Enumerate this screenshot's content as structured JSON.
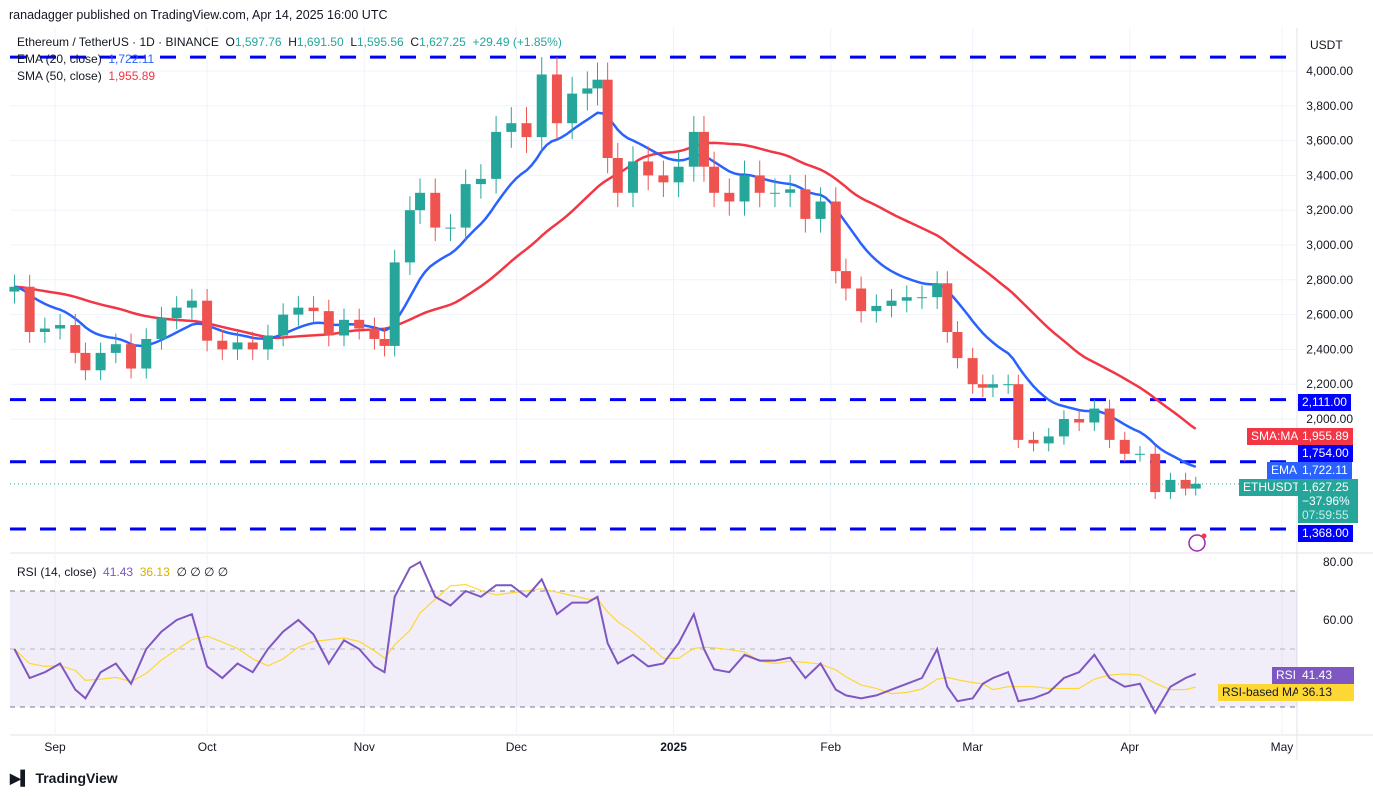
{
  "header": {
    "published": "ranadagger published on TradingView.com, Apr 14, 2025 16:00 UTC"
  },
  "legend": {
    "symbol": "Ethereum / TetherUS · 1D · BINANCE",
    "o_label": "O",
    "o": "1,597.76",
    "h_label": "H",
    "h": "1,691.50",
    "l_label": "L",
    "l": "1,595.56",
    "c_label": "C",
    "c": "1,627.25",
    "change": "+29.49 (+1.85%)",
    "ema_label": "EMA (20, close)",
    "ema": "1,722.11",
    "sma_label": "SMA (50, close)",
    "sma": "1,955.89"
  },
  "rsi_legend": {
    "label": "RSI (14, close)",
    "rsi": "41.43",
    "ma": "36.13",
    "rest": "∅ ∅ ∅ ∅"
  },
  "axis": {
    "currency": "USDT",
    "price_ticks": [
      "4,000.00",
      "3,800.00",
      "3,600.00",
      "3,400.00",
      "3,200.00",
      "3,000.00",
      "2,800.00",
      "2,600.00",
      "2,400.00",
      "2,200.00",
      "2,000.00"
    ],
    "rsi_ticks": [
      "80.00",
      "60.00"
    ],
    "time_ticks": [
      {
        "label": "Sep",
        "date": "2024-09-01"
      },
      {
        "label": "Oct",
        "date": "2024-10-01"
      },
      {
        "label": "Nov",
        "date": "2024-11-01"
      },
      {
        "label": "Dec",
        "date": "2024-12-01"
      },
      {
        "label": "2025",
        "date": "2025-01-01"
      },
      {
        "label": "Feb",
        "date": "2025-02-01"
      },
      {
        "label": "Mar",
        "date": "2025-03-01"
      },
      {
        "label": "Apr",
        "date": "2025-04-01"
      },
      {
        "label": "May",
        "date": "2025-05-01"
      }
    ]
  },
  "tags": {
    "l2111": "2,111.00",
    "sma_name": "SMA:MA",
    "sma": "1,955.89",
    "l1754": "1,754.00",
    "ema_name": "EMA",
    "ema": "1,722.11",
    "sym": "ETHUSDT",
    "price": "1,627.25",
    "pct": "−37.96%",
    "countdown": "07:59:55",
    "l1368": "1,368.00",
    "rsi_name": "RSI",
    "rsi": "41.43",
    "rsima_name": "RSI-based MA",
    "rsima": "36.13"
  },
  "footer": {
    "brand": "TradingView"
  },
  "colors": {
    "up": "#26a69a",
    "down": "#ef5350",
    "ema": "#2962ff",
    "sma": "#f23645",
    "level": "#0000ff",
    "rsi": "#7e57c2",
    "rsi_ma": "#fdd835"
  },
  "chart_data": {
    "type": "candlestick",
    "price_range": [
      1300,
      4150
    ],
    "levels": [
      4080,
      2111,
      1754,
      1368
    ],
    "indicators": [
      "EMA 20",
      "SMA 50",
      "RSI 14",
      "RSI-based MA"
    ],
    "rsi_range": [
      20,
      85
    ],
    "rsi_bands": [
      70,
      50,
      30
    ],
    "points": [
      [
        "2024-08-24",
        2760,
        50
      ],
      [
        "2024-08-27",
        2500,
        40
      ],
      [
        "2024-08-30",
        2520,
        42
      ],
      [
        "2024-09-02",
        2540,
        45
      ],
      [
        "2024-09-05",
        2380,
        36
      ],
      [
        "2024-09-07",
        2280,
        33
      ],
      [
        "2024-09-10",
        2380,
        42
      ],
      [
        "2024-09-13",
        2430,
        45
      ],
      [
        "2024-09-16",
        2290,
        38
      ],
      [
        "2024-09-19",
        2460,
        50
      ],
      [
        "2024-09-22",
        2580,
        56
      ],
      [
        "2024-09-25",
        2640,
        60
      ],
      [
        "2024-09-28",
        2680,
        62
      ],
      [
        "2024-10-01",
        2450,
        44
      ],
      [
        "2024-10-04",
        2400,
        40
      ],
      [
        "2024-10-07",
        2440,
        45
      ],
      [
        "2024-10-10",
        2400,
        42
      ],
      [
        "2024-10-13",
        2480,
        50
      ],
      [
        "2024-10-16",
        2600,
        56
      ],
      [
        "2024-10-19",
        2640,
        60
      ],
      [
        "2024-10-22",
        2620,
        55
      ],
      [
        "2024-10-25",
        2480,
        45
      ],
      [
        "2024-10-28",
        2570,
        53
      ],
      [
        "2024-10-31",
        2520,
        50
      ],
      [
        "2024-11-03",
        2460,
        44
      ],
      [
        "2024-11-05",
        2420,
        42
      ],
      [
        "2024-11-07",
        2900,
        68
      ],
      [
        "2024-11-10",
        3200,
        78
      ],
      [
        "2024-11-12",
        3300,
        80
      ],
      [
        "2024-11-15",
        3100,
        68
      ],
      [
        "2024-11-18",
        3100,
        65
      ],
      [
        "2024-11-21",
        3350,
        70
      ],
      [
        "2024-11-24",
        3380,
        68
      ],
      [
        "2024-11-27",
        3650,
        72
      ],
      [
        "2024-11-30",
        3700,
        72
      ],
      [
        "2024-12-03",
        3620,
        68
      ],
      [
        "2024-12-06",
        3980,
        74
      ],
      [
        "2024-12-09",
        3700,
        62
      ],
      [
        "2024-12-12",
        3870,
        66
      ],
      [
        "2024-12-15",
        3900,
        66
      ],
      [
        "2024-12-17",
        3950,
        68
      ],
      [
        "2024-12-19",
        3500,
        52
      ],
      [
        "2024-12-21",
        3300,
        45
      ],
      [
        "2024-12-24",
        3480,
        48
      ],
      [
        "2024-12-27",
        3400,
        44
      ],
      [
        "2024-12-30",
        3360,
        45
      ],
      [
        "2025-01-02",
        3450,
        52
      ],
      [
        "2025-01-05",
        3650,
        62
      ],
      [
        "2025-01-07",
        3450,
        50
      ],
      [
        "2025-01-09",
        3300,
        43
      ],
      [
        "2025-01-12",
        3250,
        42
      ],
      [
        "2025-01-15",
        3400,
        48
      ],
      [
        "2025-01-18",
        3300,
        46
      ],
      [
        "2025-01-21",
        3300,
        46
      ],
      [
        "2025-01-24",
        3320,
        47
      ],
      [
        "2025-01-27",
        3150,
        40
      ],
      [
        "2025-01-30",
        3250,
        45
      ],
      [
        "2025-02-02",
        2850,
        36
      ],
      [
        "2025-02-04",
        2750,
        34
      ],
      [
        "2025-02-07",
        2620,
        33
      ],
      [
        "2025-02-10",
        2650,
        34
      ],
      [
        "2025-02-13",
        2680,
        36
      ],
      [
        "2025-02-16",
        2700,
        38
      ],
      [
        "2025-02-19",
        2700,
        40
      ],
      [
        "2025-02-22",
        2780,
        50
      ],
      [
        "2025-02-24",
        2500,
        37
      ],
      [
        "2025-02-26",
        2350,
        32
      ],
      [
        "2025-03-01",
        2200,
        33
      ],
      [
        "2025-03-03",
        2180,
        38
      ],
      [
        "2025-03-05",
        2200,
        40
      ],
      [
        "2025-03-08",
        2200,
        42
      ],
      [
        "2025-03-10",
        1880,
        32
      ],
      [
        "2025-03-13",
        1860,
        33
      ],
      [
        "2025-03-16",
        1900,
        35
      ],
      [
        "2025-03-19",
        2000,
        40
      ],
      [
        "2025-03-22",
        1980,
        42
      ],
      [
        "2025-03-25",
        2060,
        48
      ],
      [
        "2025-03-28",
        1880,
        40
      ],
      [
        "2025-03-31",
        1800,
        37
      ],
      [
        "2025-04-03",
        1800,
        38
      ],
      [
        "2025-04-06",
        1580,
        28
      ],
      [
        "2025-04-09",
        1650,
        37
      ],
      [
        "2025-04-12",
        1600,
        40
      ],
      [
        "2025-04-14",
        1627.25,
        41.43
      ]
    ]
  }
}
